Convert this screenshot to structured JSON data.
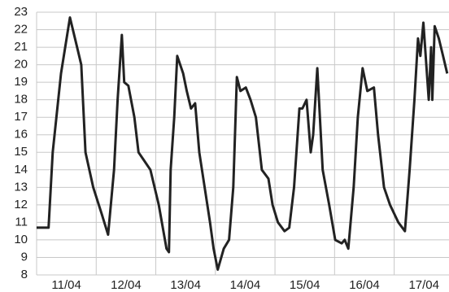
{
  "chart_data": {
    "type": "line",
    "x": [
      0,
      0.2,
      0.27,
      0.41,
      0.56,
      0.68,
      0.75,
      0.82,
      0.95,
      1.09,
      1.2,
      1.3,
      1.36,
      1.43,
      1.47,
      1.54,
      1.64,
      1.71,
      1.81,
      1.91,
      2.05,
      2.18,
      2.22,
      2.25,
      2.31,
      2.36,
      2.46,
      2.52,
      2.59,
      2.66,
      2.73,
      2.82,
      2.91,
      2.97,
      3.04,
      3.14,
      3.23,
      3.3,
      3.36,
      3.42,
      3.51,
      3.59,
      3.68,
      3.78,
      3.89,
      3.96,
      4.05,
      4.16,
      4.24,
      4.32,
      4.41,
      4.46,
      4.53,
      4.6,
      4.64,
      4.71,
      4.8,
      4.91,
      5.01,
      5.12,
      5.17,
      5.23,
      5.32,
      5.39,
      5.47,
      5.55,
      5.66,
      5.73,
      5.83,
      5.93,
      6.07,
      6.18,
      6.26,
      6.34,
      6.4,
      6.44,
      6.49,
      6.58,
      6.62,
      6.64,
      6.68,
      6.75,
      6.82,
      6.89
    ],
    "series": [
      {
        "color": "#222222",
        "values": [
          10.7,
          10.7,
          15,
          19.5,
          22.7,
          21,
          20,
          15,
          13,
          11.5,
          10.3,
          14,
          18,
          21.7,
          19,
          18.8,
          17,
          15,
          14.5,
          14,
          12,
          9.5,
          9.3,
          14,
          17,
          20.5,
          19.5,
          18.5,
          17.5,
          17.8,
          15,
          13,
          11,
          9.5,
          8.3,
          9.5,
          10,
          13,
          19.3,
          18.5,
          18.7,
          18,
          17,
          14,
          13.5,
          12,
          11,
          10.5,
          10.7,
          13,
          17.5,
          17.5,
          18,
          15,
          16,
          19.8,
          14,
          12,
          10,
          9.8,
          10,
          9.5,
          13,
          17,
          19.8,
          18.5,
          18.7,
          16,
          13,
          12,
          11,
          10.5,
          14,
          18,
          21.5,
          20.5,
          22.4,
          18,
          21,
          18,
          22.2,
          21.5,
          20.5,
          19.5
        ]
      }
    ],
    "xlim": [
      0,
      6.92
    ],
    "xticks": [
      {
        "value": 0.5,
        "label": "11/04"
      },
      {
        "value": 1.5,
        "label": "12/04"
      },
      {
        "value": 2.5,
        "label": "13/04"
      },
      {
        "value": 3.5,
        "label": "14/04"
      },
      {
        "value": 4.5,
        "label": "15/04"
      },
      {
        "value": 5.5,
        "label": "16/04"
      },
      {
        "value": 6.5,
        "label": "17/04"
      }
    ],
    "ylim": [
      8,
      23
    ],
    "yticks": [
      8,
      9,
      10,
      11,
      12,
      13,
      14,
      15,
      16,
      17,
      18,
      19,
      20,
      21,
      22,
      23
    ],
    "grid": true
  }
}
